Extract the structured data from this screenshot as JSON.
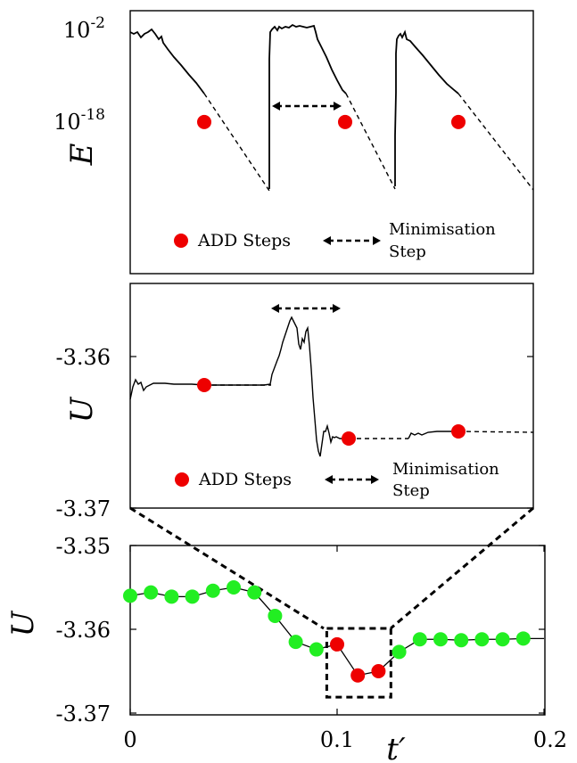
{
  "chart_data": [
    {
      "panel": "top",
      "type": "line",
      "ylabel": "E",
      "ylim": [
        1e-30,
        0.01
      ],
      "yscale": "log",
      "ytick_labels": [
        "10-2",
        "10-18"
      ],
      "x_unit": "minimisation steps (unlabelled)",
      "series": [
        {
          "style": "solid",
          "segments": [
            [
              [
                0,
                0.01
              ],
              [
                15,
                0.004
              ],
              [
                38,
                1e-18
              ]
            ],
            [
              [
                69,
                0.02
              ],
              [
                95,
                1e-18
              ]
            ],
            [
              [
                125,
                0.005
              ],
              [
                149,
                1e-18
              ]
            ]
          ]
        },
        {
          "style": "dashed",
          "segments": [
            [
              [
                38,
                1e-18
              ],
              [
                69,
                1e-29
              ]
            ],
            [
              [
                95,
                1e-18
              ],
              [
                125,
                1e-29
              ]
            ],
            [
              [
                149,
                1e-18
              ],
              [
                185,
                1e-29
              ]
            ]
          ]
        }
      ],
      "add_step_points": [
        [
          38,
          1e-18
        ],
        [
          95,
          1e-18
        ],
        [
          149,
          1e-18
        ]
      ],
      "legend": {
        "add_label": "ADD Steps",
        "min_label_line1": "Minimisation",
        "min_label_line2": "Step"
      }
    },
    {
      "panel": "middle",
      "type": "line",
      "ylabel": "U",
      "ylim": [
        -3.37,
        -3.355
      ],
      "ytick_labels": [
        "-3.36",
        "-3.37"
      ],
      "add_step_points": [
        [
          0.0349,
          -3.3618
        ],
        [
          0.1059,
          -3.3658
        ],
        [
          0.1599,
          -3.3652
        ]
      ],
      "legend": {
        "add_label": "ADD Steps",
        "min_label_line1": "Minimisation",
        "min_label_line2": "Step"
      }
    },
    {
      "panel": "bottom",
      "type": "scatter",
      "xlabel": "t′",
      "ylabel": "U",
      "xlim": [
        0,
        0.2
      ],
      "ylim": [
        -3.37,
        -3.35
      ],
      "xtick_labels": [
        "0",
        "0.1",
        "0.2"
      ],
      "ytick_labels": [
        "-3.35",
        "-3.36",
        "-3.37"
      ],
      "x": [
        0.0,
        0.01,
        0.02,
        0.03,
        0.04,
        0.05,
        0.06,
        0.07,
        0.08,
        0.09,
        0.1,
        0.11,
        0.12,
        0.13,
        0.14,
        0.15,
        0.16,
        0.17,
        0.18,
        0.19
      ],
      "y": [
        -3.356,
        -3.3556,
        -3.3561,
        -3.3561,
        -3.3554,
        -3.355,
        -3.3556,
        -3.3584,
        -3.3615,
        -3.3624,
        -3.3618,
        -3.3655,
        -3.365,
        -3.3627,
        -3.3612,
        -3.3612,
        -3.3613,
        -3.3612,
        -3.3612,
        -3.3611
      ],
      "point_types": [
        "green",
        "green",
        "green",
        "green",
        "green",
        "green",
        "green",
        "green",
        "green",
        "green",
        "red",
        "red",
        "red",
        "green",
        "green",
        "green",
        "green",
        "green",
        "green",
        "green"
      ],
      "line_end": [
        0.2,
        -3.3611
      ],
      "zoom_box_x": [
        0.095,
        0.126
      ],
      "zoom_box_y": [
        -3.3681,
        -3.3599
      ]
    }
  ],
  "colors": {
    "add_point": "#ee0000",
    "other_point": "#22ee22",
    "line": "#000000"
  }
}
